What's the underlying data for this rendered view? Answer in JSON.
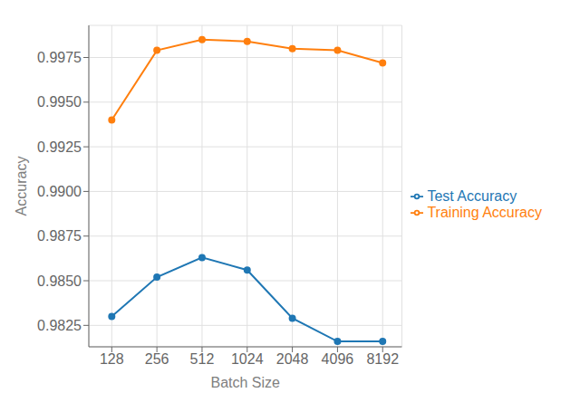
{
  "chart_data": {
    "type": "line",
    "x": [
      128,
      256,
      512,
      1024,
      2048,
      4096,
      8192
    ],
    "series": [
      {
        "name": "Test Accuracy",
        "color": "#1f77b4",
        "values": [
          0.983,
          0.9852,
          0.9863,
          0.9856,
          0.9829,
          0.9816,
          0.9816
        ]
      },
      {
        "name": "Training Accuracy",
        "color": "#ff7f0e",
        "values": [
          0.994,
          0.9979,
          0.9985,
          0.9984,
          0.998,
          0.9979,
          0.9972
        ]
      }
    ],
    "xlabel": "Batch Size",
    "ylabel": "Accuracy",
    "log": "x",
    "xlim": [
      90,
      11000
    ],
    "xticks": [
      128,
      256,
      512,
      1024,
      2048,
      4096,
      8192
    ],
    "ylim": [
      0.9813,
      0.9993
    ],
    "yticks": [
      0.9825,
      {
        "value": 0.985,
        "label": "0.9850"
      },
      0.9875,
      {
        "value": 0.99,
        "label": "0.9900"
      },
      0.9925,
      {
        "value": 0.995,
        "label": "0.9950"
      },
      0.9975
    ],
    "grid": true,
    "legend": "center right",
    "marker": "o"
  }
}
